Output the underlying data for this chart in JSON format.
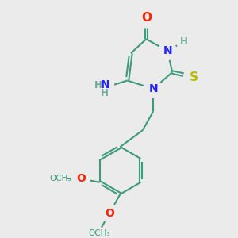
{
  "bg_color": "#ebebeb",
  "bond_color": "#3d9a7a",
  "bond_width": 1.5,
  "dbo": 0.06,
  "atom_colors": {
    "O": "#ff2200",
    "N": "#2222ff",
    "S": "#bbbb00",
    "C": "#3d9a7a",
    "H": "#6aaa99"
  },
  "font_size": 10,
  "font_size_small": 8.5
}
